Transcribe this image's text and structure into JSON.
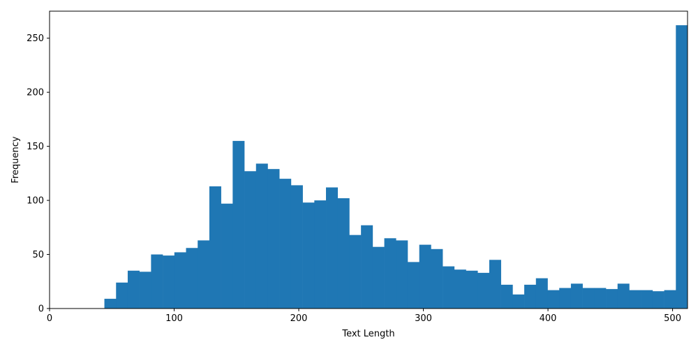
{
  "chart_data": {
    "type": "bar",
    "xlabel": "Text Length",
    "ylabel": "Frequency",
    "xlim": [
      0,
      512
    ],
    "ylim": [
      0,
      275
    ],
    "xticks": [
      0,
      100,
      200,
      300,
      400,
      500
    ],
    "yticks": [
      0,
      50,
      100,
      150,
      200,
      250
    ],
    "bin_start": 44,
    "bin_width": 9.36,
    "values": [
      9,
      24,
      35,
      34,
      50,
      49,
      52,
      56,
      63,
      113,
      97,
      155,
      127,
      134,
      129,
      120,
      114,
      98,
      100,
      112,
      102,
      68,
      77,
      57,
      65,
      63,
      43,
      59,
      55,
      39,
      36,
      35,
      33,
      45,
      22,
      13,
      22,
      28,
      17,
      19,
      23,
      19,
      19,
      18,
      23,
      17,
      17,
      16,
      17,
      262
    ],
    "color": "#1f77b4",
    "grid": false
  }
}
